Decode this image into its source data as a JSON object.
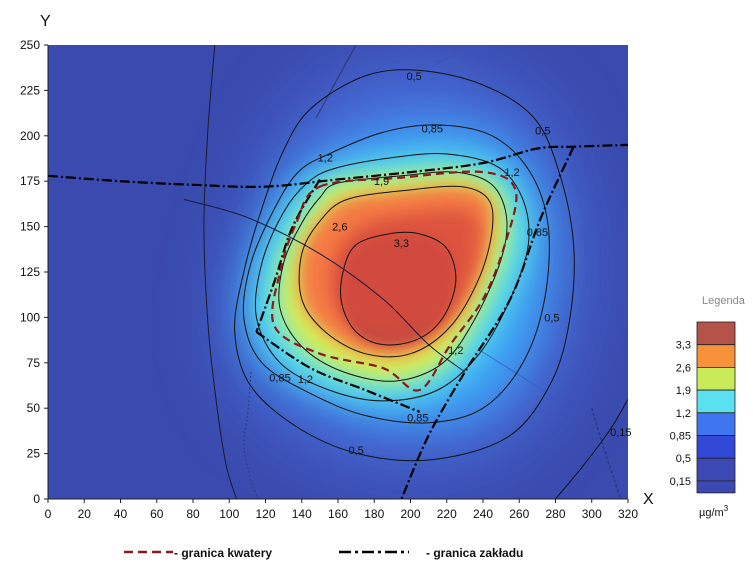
{
  "chart_data": {
    "type": "heatmap",
    "xlabel": "X",
    "ylabel": "Y",
    "xlim": [
      0,
      320
    ],
    "ylim": [
      0,
      250
    ],
    "x_ticks": [
      "0",
      "20",
      "40",
      "60",
      "80",
      "100",
      "120",
      "140",
      "160",
      "180",
      "200",
      "220",
      "240",
      "260",
      "280",
      "300",
      "320"
    ],
    "y_ticks": [
      "0",
      "25",
      "50",
      "75",
      "100",
      "125",
      "150",
      "175",
      "200",
      "225",
      "250"
    ],
    "contour_levels": [
      "0,15",
      "0,5",
      "0,85",
      "1,2",
      "1,9",
      "2,6",
      "3,3"
    ],
    "contour_labels": [
      {
        "text": "0,5",
        "x": 202,
        "y": 233
      },
      {
        "text": "0,5",
        "x": 273,
        "y": 203
      },
      {
        "text": "0,5",
        "x": 278,
        "y": 100
      },
      {
        "text": "0,5",
        "x": 170,
        "y": 27
      },
      {
        "text": "0,85",
        "x": 212,
        "y": 204
      },
      {
        "text": "0,85",
        "x": 270,
        "y": 147
      },
      {
        "text": "0,85",
        "x": 128,
        "y": 67
      },
      {
        "text": "0,85",
        "x": 204,
        "y": 45
      },
      {
        "text": "1,2",
        "x": 153,
        "y": 188
      },
      {
        "text": "1,2",
        "x": 256,
        "y": 180
      },
      {
        "text": "1,2",
        "x": 225,
        "y": 82
      },
      {
        "text": "1,2",
        "x": 142,
        "y": 66
      },
      {
        "text": "1,9",
        "x": 184,
        "y": 175
      },
      {
        "text": "2,6",
        "x": 161,
        "y": 150
      },
      {
        "text": "3,3",
        "x": 195,
        "y": 141
      },
      {
        "text": "0,15",
        "x": 316,
        "y": 37
      }
    ],
    "colorbar": {
      "title": "Legenda",
      "unit": "µg/m³",
      "colors": [
        "#b5524a",
        "#f7923a",
        "#c9eb5a",
        "#5be0f0",
        "#3f76f0",
        "#3248d6",
        "#3c48b4"
      ],
      "labels": [
        "3,3",
        "2,6",
        "1,9",
        "1,2",
        "0,85",
        "0,5",
        "0,15"
      ]
    },
    "legend": [
      {
        "label": "- granica kwatery",
        "color": "#8b1a1a",
        "style": "dashed"
      },
      {
        "label": "- granica zakładu",
        "color": "#000000",
        "style": "dash-dot"
      }
    ]
  }
}
